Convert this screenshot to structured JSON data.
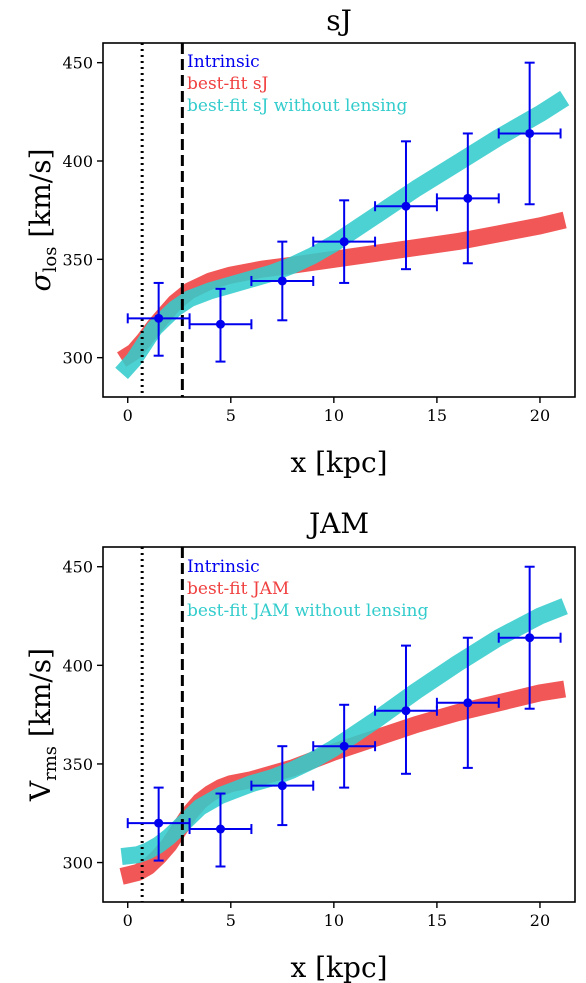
{
  "colors": {
    "intrinsic": "#0000ee",
    "model": "#f04040",
    "no_lensing": "#33cccc",
    "axes": "#000000",
    "background": "#ffffff"
  },
  "chart_data": [
    {
      "type": "line",
      "title": "sJ",
      "xlabel": "x [kpc]",
      "ylabel_main": "σ",
      "ylabel_sub": "los",
      "ylabel_unit": "[km/s]",
      "xlim": [
        -1.2,
        21.7
      ],
      "ylim": [
        280,
        460
      ],
      "xticks": [
        0,
        5,
        10,
        15,
        20
      ],
      "yticks": [
        300,
        350,
        400,
        450
      ],
      "grid": false,
      "legend_position": "top-left",
      "vlines": [
        {
          "x": 0.7,
          "style": "dotted"
        },
        {
          "x": 2.65,
          "style": "dashed"
        }
      ],
      "series": [
        {
          "name": "Intrinsic",
          "kind": "errorbar",
          "x": [
            1.5,
            4.5,
            7.5,
            10.5,
            13.5,
            16.5,
            19.5
          ],
          "y": [
            320,
            317,
            339,
            359,
            377,
            381,
            414
          ],
          "xerr": [
            1.5,
            1.5,
            1.5,
            1.5,
            1.5,
            1.5,
            1.5
          ],
          "yerr_low": [
            19,
            19,
            20,
            21,
            32,
            33,
            36
          ],
          "yerr_high": [
            18,
            18,
            20,
            21,
            33,
            33,
            36
          ]
        },
        {
          "name": "best-fit sJ",
          "kind": "line",
          "x": [
            -0.3,
            0.3,
            0.8,
            1.3,
            1.8,
            2.3,
            3.0,
            4.0,
            5.0,
            6.5,
            8.0,
            10.0,
            12.0,
            14.0,
            16.0,
            18.0,
            20.0,
            21.2
          ],
          "y": [
            299,
            303,
            309,
            316,
            322,
            328,
            334,
            339,
            342,
            345,
            347,
            350,
            353,
            356,
            359,
            363,
            367,
            370
          ]
        },
        {
          "name": "best-fit sJ without lensing",
          "kind": "line",
          "x": [
            -0.3,
            0.3,
            0.8,
            1.3,
            1.8,
            2.3,
            3.0,
            4.0,
            5.0,
            6.0,
            7.0,
            8.0,
            9.0,
            10.0,
            12.0,
            14.0,
            16.0,
            18.0,
            20.0,
            21.2
          ],
          "y": [
            292,
            299,
            307,
            315,
            320,
            325,
            330,
            334,
            337,
            340,
            343,
            347,
            352,
            358,
            372,
            386,
            399,
            412,
            424,
            432
          ]
        }
      ]
    },
    {
      "type": "line",
      "title": "JAM",
      "xlabel": "x [kpc]",
      "ylabel_main": "V",
      "ylabel_sub": "rms",
      "ylabel_unit": "[km/s]",
      "xlim": [
        -1.2,
        21.7
      ],
      "ylim": [
        280,
        460
      ],
      "xticks": [
        0,
        5,
        10,
        15,
        20
      ],
      "yticks": [
        300,
        350,
        400,
        450
      ],
      "grid": false,
      "legend_position": "top-left",
      "vlines": [
        {
          "x": 0.7,
          "style": "dotted"
        },
        {
          "x": 2.65,
          "style": "dashed"
        }
      ],
      "series": [
        {
          "name": "Intrinsic",
          "kind": "errorbar",
          "x": [
            1.5,
            4.5,
            7.5,
            10.5,
            13.5,
            16.5,
            19.5
          ],
          "y": [
            320,
            317,
            339,
            359,
            377,
            381,
            414
          ],
          "xerr": [
            1.5,
            1.5,
            1.5,
            1.5,
            1.5,
            1.5,
            1.5
          ],
          "yerr_low": [
            19,
            19,
            20,
            21,
            32,
            33,
            36
          ],
          "yerr_high": [
            18,
            18,
            20,
            21,
            33,
            33,
            36
          ]
        },
        {
          "name": "best-fit JAM",
          "kind": "line",
          "x": [
            -0.3,
            0.5,
            1.0,
            1.5,
            2.0,
            2.5,
            3.0,
            3.5,
            4.0,
            4.5,
            5.0,
            6.0,
            7.0,
            8.0,
            9.0,
            10.0,
            12.0,
            14.0,
            16.0,
            18.0,
            20.0,
            21.2
          ],
          "y": [
            293,
            295,
            298,
            303,
            309,
            317,
            325,
            331,
            335,
            338,
            340,
            342,
            345,
            348,
            352,
            356,
            363,
            370,
            376,
            381,
            386,
            388
          ]
        },
        {
          "name": "best-fit JAM without lensing",
          "kind": "line",
          "x": [
            -0.3,
            0.5,
            1.0,
            1.5,
            2.0,
            2.5,
            3.0,
            3.5,
            4.0,
            4.5,
            5.0,
            6.0,
            7.0,
            8.0,
            9.0,
            10.0,
            12.0,
            14.0,
            16.0,
            18.0,
            20.0,
            21.2
          ],
          "y": [
            303,
            304,
            306,
            309,
            313,
            318,
            323,
            328,
            331,
            334,
            336,
            340,
            343,
            347,
            352,
            358,
            372,
            387,
            401,
            414,
            425,
            430
          ]
        }
      ]
    }
  ]
}
